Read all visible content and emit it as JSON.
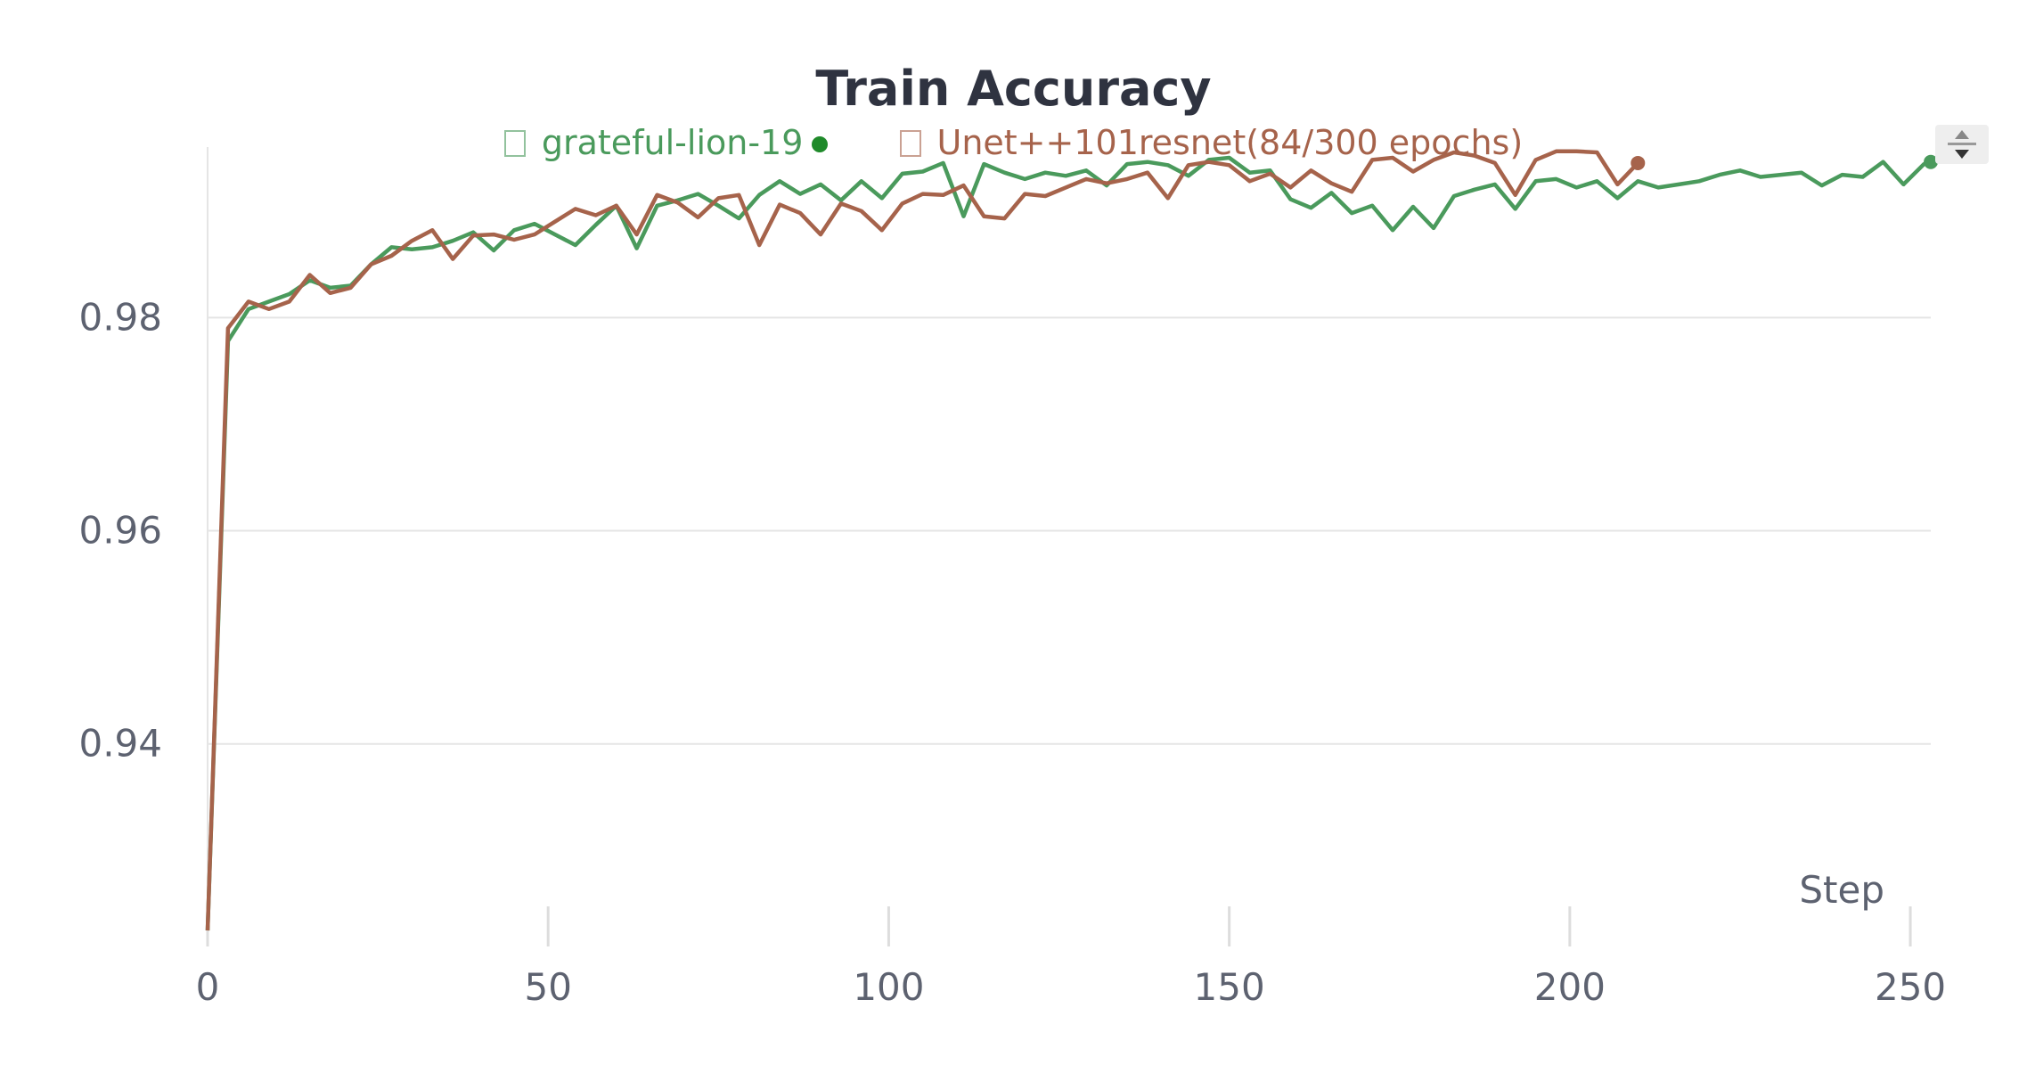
{
  "chart_data": {
    "type": "line",
    "title": "Train Accuracy",
    "xlabel": "Step",
    "ylabel": "",
    "xlim": [
      0,
      253
    ],
    "ylim": [
      0.922,
      0.996
    ],
    "x_ticks": [
      0,
      50,
      100,
      150,
      200,
      250
    ],
    "x_tick_labels": [
      "0",
      "50",
      "100",
      "150",
      "200",
      "250"
    ],
    "y_ticks": [
      0.94,
      0.96,
      0.98
    ],
    "y_tick_labels": [
      "0.94",
      "0.96",
      "0.98"
    ],
    "grid": true,
    "legend_position": "top-center",
    "series": [
      {
        "name": "grateful-lion-19",
        "color": "#4a9a5c",
        "x": [
          0,
          3,
          6,
          9,
          12,
          15,
          18,
          21,
          24,
          27,
          30,
          33,
          36,
          39,
          42,
          45,
          48,
          51,
          54,
          57,
          60,
          63,
          66,
          69,
          72,
          75,
          78,
          81,
          84,
          87,
          90,
          93,
          96,
          99,
          102,
          105,
          108,
          111,
          114,
          117,
          120,
          123,
          126,
          129,
          132,
          135,
          138,
          141,
          144,
          147,
          150,
          153,
          156,
          159,
          162,
          165,
          168,
          171,
          174,
          177,
          180,
          183,
          186,
          189,
          192,
          195,
          198,
          201,
          204,
          207,
          210,
          213,
          216,
          219,
          222,
          225,
          228,
          231,
          234,
          237,
          240,
          243,
          246,
          249,
          252,
          253
        ],
        "y": [
          0.9225,
          0.9778,
          0.9808,
          0.9815,
          0.9822,
          0.9835,
          0.9828,
          0.983,
          0.985,
          0.9866,
          0.9864,
          0.9866,
          0.9872,
          0.988,
          0.9863,
          0.9882,
          0.9888,
          0.9878,
          0.9868,
          0.9887,
          0.9905,
          0.9865,
          0.9905,
          0.991,
          0.9916,
          0.9905,
          0.9893,
          0.9915,
          0.9928,
          0.9916,
          0.9925,
          0.991,
          0.9928,
          0.9912,
          0.9935,
          0.9937,
          0.9945,
          0.9895,
          0.9944,
          0.9936,
          0.993,
          0.9936,
          0.9933,
          0.9938,
          0.9924,
          0.9944,
          0.9946,
          0.9943,
          0.9933,
          0.9948,
          0.995,
          0.9936,
          0.9938,
          0.9911,
          0.9903,
          0.9917,
          0.9898,
          0.9905,
          0.9882,
          0.9904,
          0.9884,
          0.9914,
          0.992,
          0.9925,
          0.9902,
          0.9928,
          0.993,
          0.9922,
          0.9928,
          0.9912,
          0.9928,
          0.9922,
          0.9925,
          0.9928,
          0.9934,
          0.9938,
          0.9932,
          0.9934,
          0.9936,
          0.9924,
          0.9934,
          0.9932,
          0.9946,
          0.9925,
          0.9944,
          0.9946
        ]
      },
      {
        "name": "Unet++101resnet(84/300 epochs)",
        "color": "#a6634b",
        "x": [
          0,
          3,
          6,
          9,
          12,
          15,
          18,
          21,
          24,
          27,
          30,
          33,
          36,
          39,
          42,
          45,
          48,
          51,
          54,
          57,
          60,
          63,
          66,
          69,
          72,
          75,
          78,
          81,
          84,
          87,
          90,
          93,
          96,
          99,
          102,
          105,
          108,
          111,
          114,
          117,
          120,
          123,
          126,
          129,
          132,
          135,
          138,
          141,
          144,
          147,
          150,
          153,
          156,
          159,
          162,
          165,
          168,
          171,
          174,
          177,
          180,
          183,
          186,
          189,
          192,
          195,
          198,
          201,
          204,
          207,
          210
        ],
        "y": [
          0.9225,
          0.979,
          0.9815,
          0.9808,
          0.9815,
          0.984,
          0.9823,
          0.9828,
          0.985,
          0.9858,
          0.9872,
          0.9882,
          0.9855,
          0.9877,
          0.9878,
          0.9873,
          0.9878,
          0.989,
          0.9902,
          0.9896,
          0.9905,
          0.9878,
          0.9915,
          0.9908,
          0.9894,
          0.9912,
          0.9915,
          0.9868,
          0.9906,
          0.9898,
          0.9878,
          0.9907,
          0.99,
          0.9882,
          0.9907,
          0.9916,
          0.9915,
          0.9924,
          0.9895,
          0.9893,
          0.9916,
          0.9914,
          0.9922,
          0.993,
          0.9926,
          0.993,
          0.9936,
          0.9912,
          0.9943,
          0.9946,
          0.9943,
          0.9928,
          0.9935,
          0.9922,
          0.9938,
          0.9926,
          0.9918,
          0.9948,
          0.995,
          0.9937,
          0.9948,
          0.9955,
          0.9952,
          0.9945,
          0.9915,
          0.9948,
          0.9956,
          0.9956,
          0.9955,
          0.9925,
          0.9945
        ]
      }
    ]
  },
  "ui": {
    "legend_box_icon": "square-outline-icon",
    "legend_dot_icon": "filled-circle-icon",
    "scroll_control_icon": "scroll-up-down-icon",
    "gridline_color": "#e5e5e5",
    "axis_text_color": "#5d6270",
    "title_color": "#2f3340"
  }
}
